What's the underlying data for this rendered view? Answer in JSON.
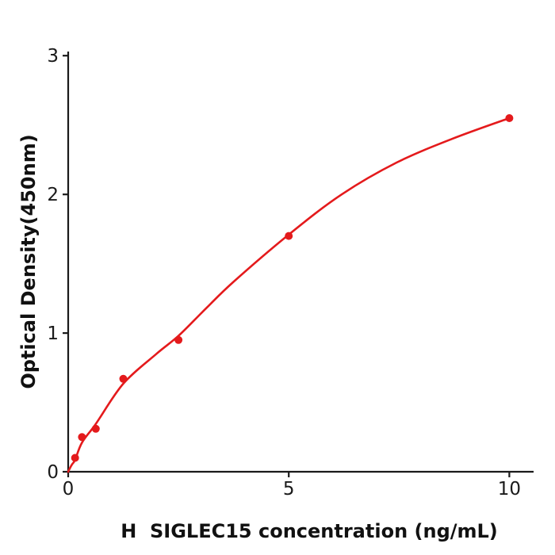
{
  "figure": {
    "background": "#ffffff"
  },
  "chart_data": {
    "type": "scatter",
    "xlabel": "H  SIGLEC15 concentration (ng/mL)",
    "ylabel": "Optical Density(450nm)",
    "xlim": [
      0,
      10.55
    ],
    "ylim": [
      0,
      3.03
    ],
    "x_ticks": [
      0,
      5,
      10
    ],
    "y_ticks": [
      0,
      1,
      2,
      3
    ],
    "grid": false,
    "legend": "none",
    "axis_color": "#1a1a1a",
    "tick_direction": "out",
    "series": [
      {
        "kind": "scatter-with-fit-curve",
        "color": "#e41a1c",
        "points": [
          {
            "x": 0.156,
            "y": 0.1
          },
          {
            "x": 0.3125,
            "y": 0.25
          },
          {
            "x": 0.625,
            "y": 0.31
          },
          {
            "x": 1.25,
            "y": 0.67
          },
          {
            "x": 2.5,
            "y": 0.95
          },
          {
            "x": 5,
            "y": 1.7
          },
          {
            "x": 10,
            "y": 2.55
          }
        ],
        "fit_curve": [
          [
            0,
            0
          ],
          [
            0.08,
            0.05
          ],
          [
            0.156,
            0.085
          ],
          [
            0.3125,
            0.21
          ],
          [
            0.625,
            0.345
          ],
          [
            1.25,
            0.635
          ],
          [
            2.0,
            0.85
          ],
          [
            2.5,
            0.98
          ],
          [
            3.1,
            1.17
          ],
          [
            3.75,
            1.37
          ],
          [
            5.0,
            1.71
          ],
          [
            6.2,
            2.0
          ],
          [
            7.45,
            2.23
          ],
          [
            8.7,
            2.4
          ],
          [
            10.0,
            2.55
          ]
        ]
      }
    ]
  }
}
